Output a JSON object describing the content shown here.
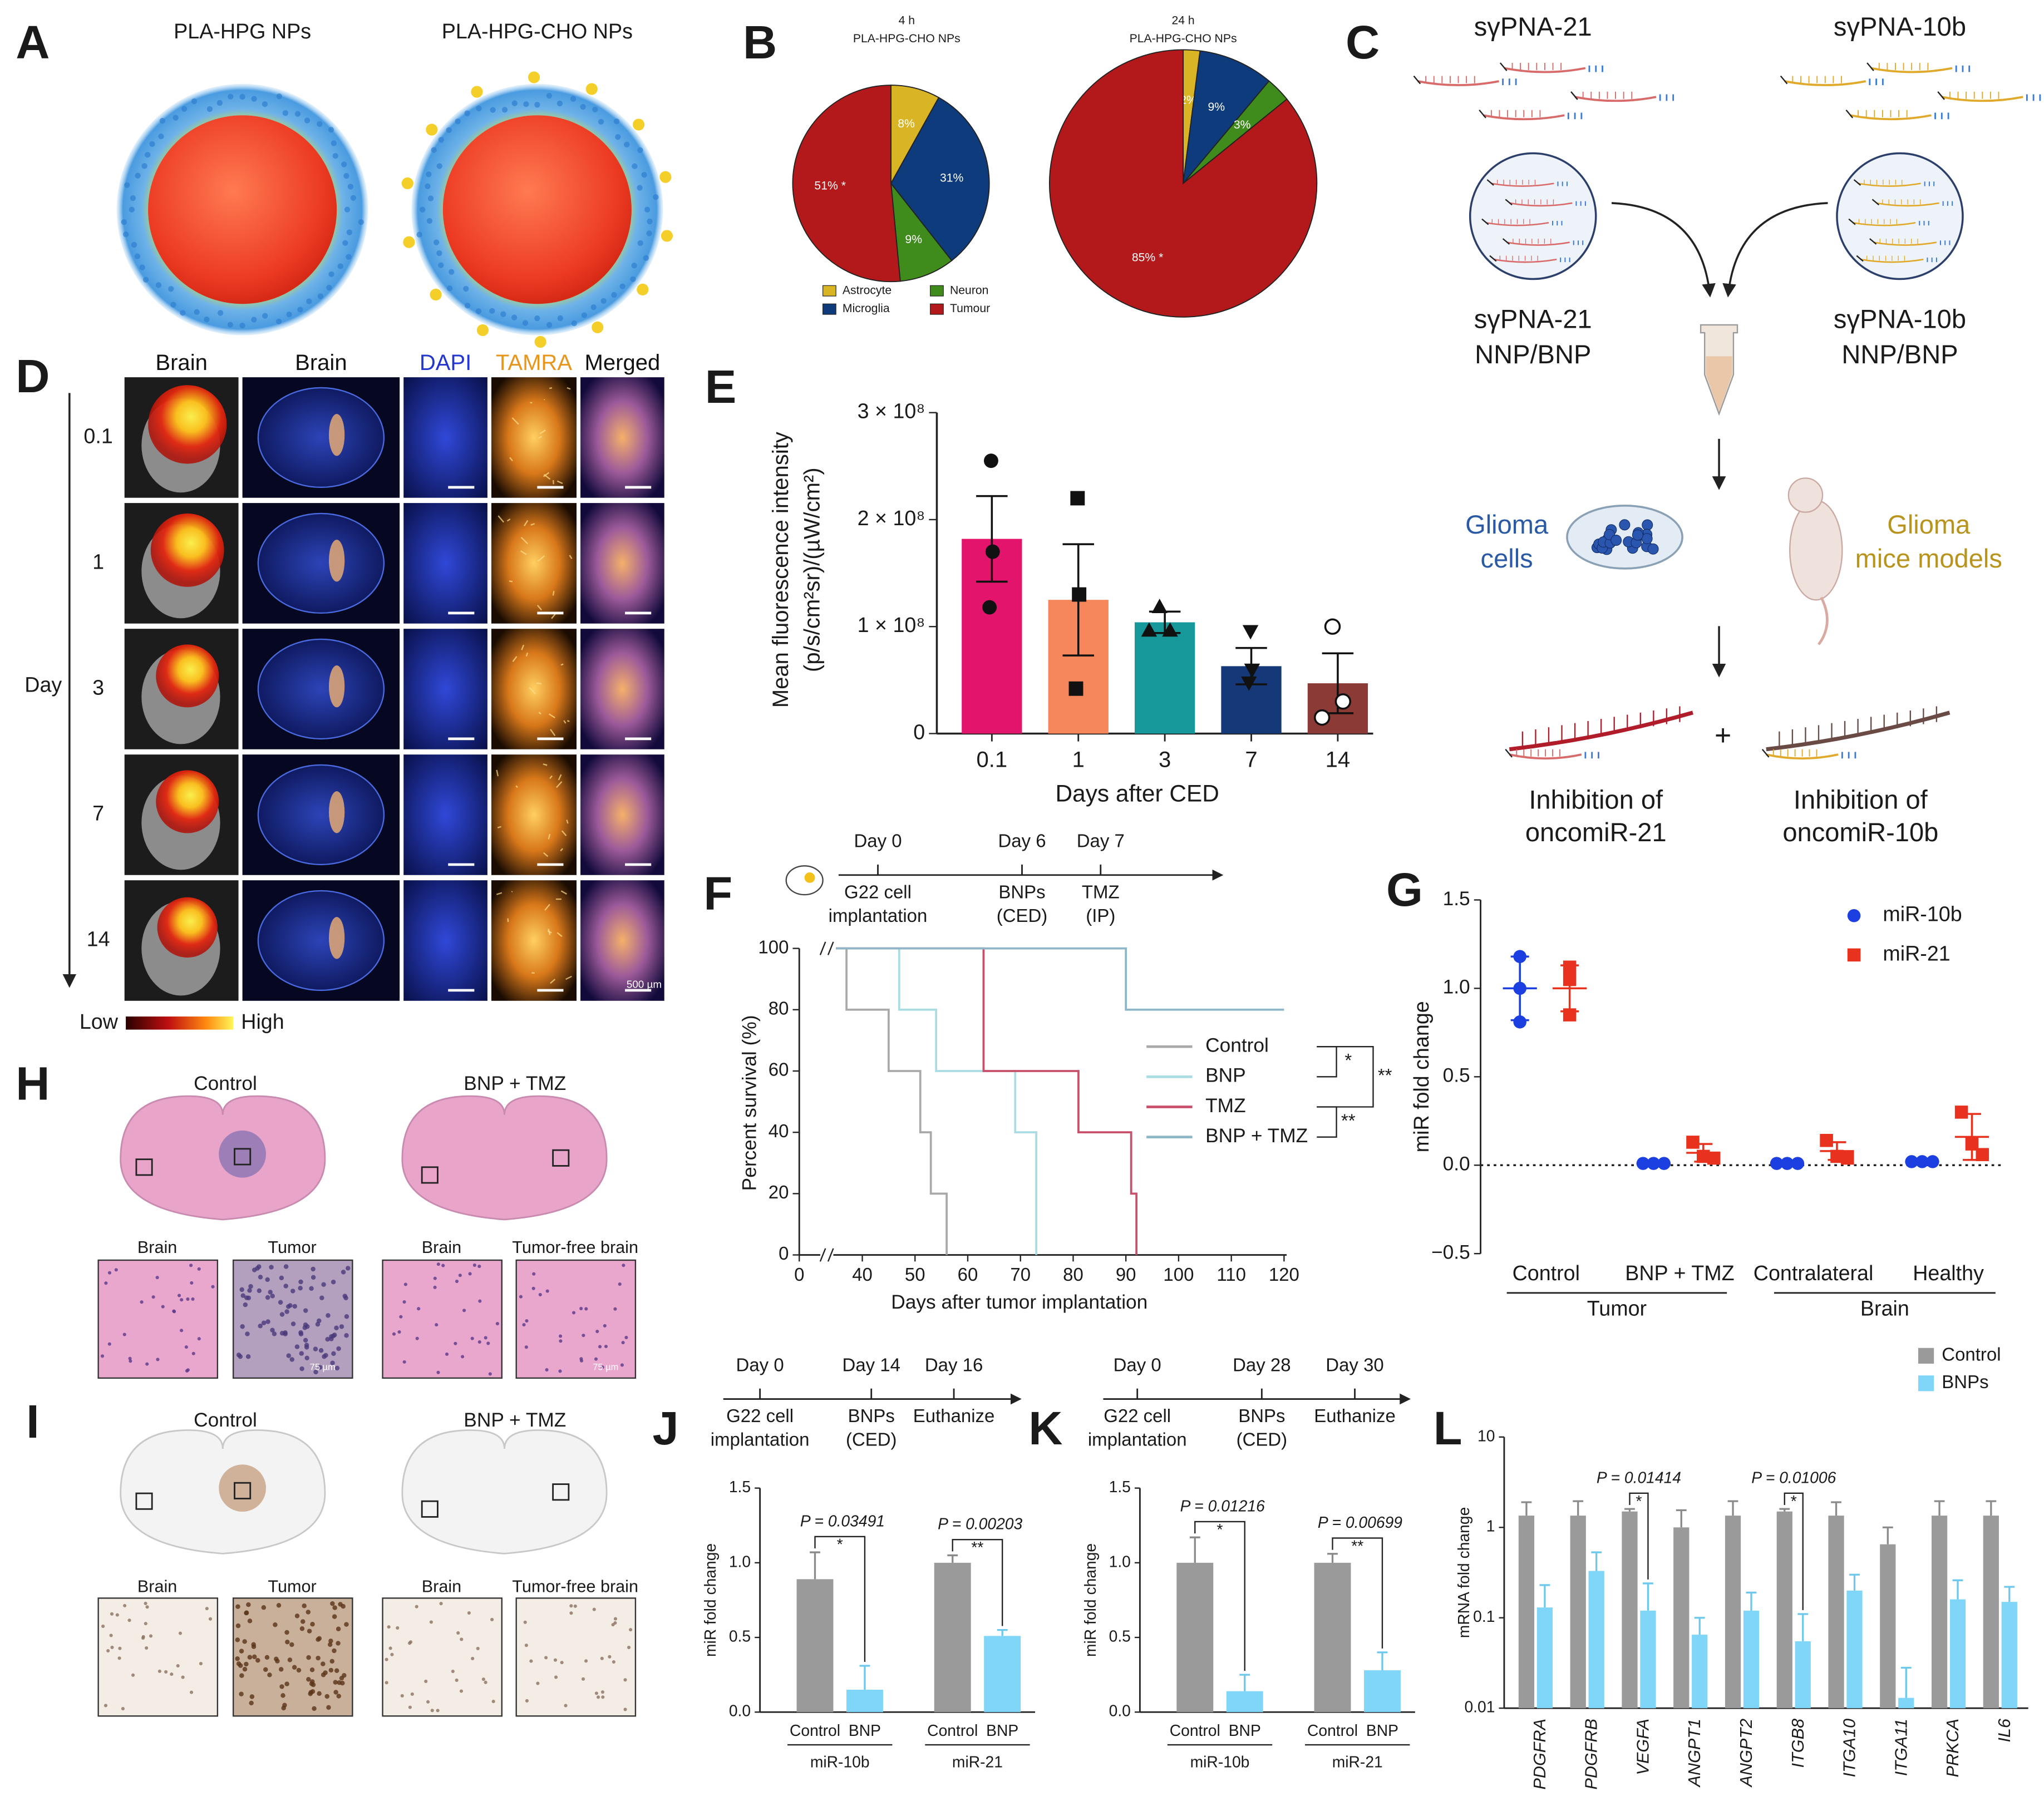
{
  "panel_labels": [
    "A",
    "B",
    "C",
    "D",
    "E",
    "F",
    "G",
    "H",
    "I",
    "J",
    "K",
    "L"
  ],
  "panel_a": {
    "titles": [
      "PLA-HPG NPs",
      "PLA-HPG-CHO NPs"
    ]
  },
  "panel_c": {
    "probes": [
      "sγPNA-21",
      "sγPNA-10b"
    ],
    "formulations": [
      [
        "sγPNA-21",
        "NNP/BNP"
      ],
      [
        "sγPNA-10b",
        "NNP/BNP"
      ]
    ],
    "in_vitro": [
      "Glioma",
      "cells"
    ],
    "in_vivo": [
      "Glioma",
      "mice models"
    ],
    "join": "+",
    "outcomes": [
      [
        "Inhibition of",
        "oncomiR-21"
      ],
      [
        "Inhibition of",
        "oncomiR-10b"
      ]
    ]
  },
  "panel_d": {
    "columns": [
      "Brain",
      "Brain",
      "DAPI",
      "TAMRA",
      "Merged"
    ],
    "column_colors": [
      "#111111",
      "#111111",
      "#2236d0",
      "#e8951c",
      "#111111"
    ],
    "axis_label": "Day",
    "rows": [
      "0.1",
      "1",
      "3",
      "7",
      "14"
    ],
    "scale_low": "Low",
    "scale_high": "High",
    "scale_bar": "500 µm"
  },
  "panel_h": {
    "groups": [
      "Control",
      "BNP + TMZ"
    ],
    "insets": [
      "Brain",
      "Tumor",
      "Brain",
      "Tumor-free brain"
    ],
    "scale_bar": "75 µm"
  },
  "panel_i": {
    "groups": [
      "Control",
      "BNP + TMZ"
    ],
    "insets": [
      "Brain",
      "Tumor",
      "Brain",
      "Tumor-free brain"
    ]
  },
  "chart_data": [
    {
      "type": "pie",
      "categories": [
        "Astrocyte",
        "Microglia",
        "Neuron",
        "Tumour"
      ],
      "colors": [
        "#d9b526",
        "#0d3b7c",
        "#3f8c1c",
        "#b3191b"
      ],
      "series": [
        {
          "name": "4 h",
          "subtitle": "PLA-HPG-CHO NPs",
          "values": [
            8,
            31,
            9,
            51
          ],
          "value_labels": [
            "8%",
            "31%",
            "9%",
            "51% *"
          ]
        },
        {
          "name": "24 h",
          "subtitle": "PLA-HPG-CHO NPs",
          "values": [
            2,
            9,
            3,
            85
          ],
          "value_labels": [
            "2%",
            "9%",
            "3%",
            "85% *"
          ]
        }
      ]
    },
    {
      "type": "bar",
      "categories": [
        "0.1",
        "1",
        "3",
        "7",
        "14"
      ],
      "values": [
        182000000,
        125000000,
        104000000,
        63000000,
        47000000
      ],
      "errors": [
        40000000,
        52000000,
        10000000,
        17000000,
        28000000
      ],
      "points": [
        [
          255000000,
          170000000,
          118000000
        ],
        [
          220000000,
          130000000,
          42000000
        ],
        [
          118000000,
          96000000,
          96000000
        ],
        [
          96000000,
          60000000,
          48000000
        ],
        [
          100000000,
          30000000,
          15000000
        ]
      ],
      "markers": [
        "circle",
        "square",
        "triangle",
        "triangle-down",
        "circle-open"
      ],
      "colors": [
        "#e2146b",
        "#f5875a",
        "#17999b",
        "#143878",
        "#8c3a36"
      ],
      "ylim": [
        0,
        300000000
      ],
      "yticks": [
        0,
        {
          "value": 100000000,
          "label": "1 × 10⁸"
        },
        {
          "value": 200000000,
          "label": "2 × 10⁸"
        },
        {
          "value": 300000000,
          "label": "3 × 10⁸"
        }
      ],
      "xlabel": "Days after CED",
      "ylabel": [
        "Mean fluorescence intensity",
        "(p/s/cm²sr)/(µW/cm²)"
      ]
    },
    {
      "type": "line",
      "step": true,
      "xlim": [
        0,
        120
      ],
      "axis_break": [
        5,
        35
      ],
      "xticks": [
        0,
        40,
        50,
        60,
        70,
        80,
        90,
        100,
        110,
        120
      ],
      "ylim": [
        0,
        100
      ],
      "yticks": [
        0,
        20,
        40,
        60,
        80,
        100
      ],
      "xlabel": "Days after tumor implantation",
      "ylabel": "Percent survival (%)",
      "series": [
        {
          "name": "Control",
          "color": "#a9a9a9",
          "x": [
            35,
            37,
            45,
            51,
            53,
            56
          ],
          "values": [
            100,
            80,
            60,
            40,
            20,
            0
          ]
        },
        {
          "name": "BNP",
          "color": "#a9dde3",
          "x": [
            35,
            47,
            54,
            69,
            73
          ],
          "values": [
            100,
            80,
            60,
            40,
            0
          ]
        },
        {
          "name": "TMZ",
          "color": "#c9506b",
          "x": [
            35,
            63,
            81,
            91,
            92
          ],
          "values": [
            100,
            60,
            40,
            20,
            0
          ]
        },
        {
          "name": "BNP + TMZ",
          "color": "#8db6c8",
          "x": [
            35,
            90,
            120
          ],
          "values": [
            100,
            80,
            80
          ]
        }
      ],
      "significance": [
        {
          "series": [
            0,
            1
          ],
          "label": "*"
        },
        {
          "series": [
            0,
            2
          ],
          "label": "**"
        },
        {
          "series": [
            2,
            3
          ],
          "label": "**"
        }
      ],
      "timeline": {
        "days": [
          "Day 0",
          "Day 6",
          "Day 7"
        ],
        "events": [
          [
            "G22 cell",
            "implantation"
          ],
          [
            "BNPs",
            "(CED)"
          ],
          [
            "TMZ",
            "(IP)"
          ]
        ]
      }
    },
    {
      "type": "scatter",
      "categories": [
        "Control",
        "BNP + TMZ",
        "Contralateral",
        "Healthy"
      ],
      "groups": [
        {
          "name": "Tumor",
          "categories": [
            0,
            1
          ]
        },
        {
          "name": "Brain",
          "categories": [
            2,
            3
          ]
        }
      ],
      "ylim": [
        -0.5,
        1.5
      ],
      "yticks": [
        {
          "value": -0.5,
          "label": "−0.5"
        },
        {
          "value": 0,
          "label": "0.0"
        },
        0.5,
        {
          "value": 1,
          "label": "1.0"
        },
        1.5
      ],
      "ylabel": "miR fold change",
      "reference_line": 0,
      "legend": "upper right",
      "series": [
        {
          "name": "miR-10b",
          "color": "#1b3fe0",
          "marker": "circle",
          "values": [
            [
              1.18,
              1.0,
              0.81
            ],
            [
              0.01,
              0.01,
              0.01
            ],
            [
              0.01,
              0.01,
              0.01
            ],
            [
              0.02,
              0.02,
              0.02
            ]
          ],
          "means": [
            1.0,
            0.01,
            0.01,
            0.02
          ],
          "sd": [
            0.18,
            0,
            0,
            0
          ]
        },
        {
          "name": "miR-21",
          "color": "#e8321e",
          "marker": "square",
          "values": [
            [
              1.12,
              1.05,
              0.85
            ],
            [
              0.13,
              0.05,
              0.04
            ],
            [
              0.14,
              0.05,
              0.04
            ],
            [
              0.3,
              0.12,
              0.06
            ]
          ],
          "means": [
            1.0,
            0.07,
            0.08,
            0.16
          ],
          "sd": [
            0.13,
            0.05,
            0.05,
            0.13
          ]
        }
      ]
    },
    {
      "type": "bar",
      "categories": [
        "miR-10b",
        "miR-21"
      ],
      "series": [
        {
          "name": "Control",
          "color": "#9a9a9a",
          "values": [
            0.89,
            1.0
          ],
          "errors": [
            0.18,
            0.05
          ]
        },
        {
          "name": "BNP",
          "color": "#80d6f8",
          "values": [
            0.15,
            0.51
          ],
          "errors": [
            0.16,
            0.04
          ]
        }
      ],
      "ylim": [
        0,
        1.5
      ],
      "yticks": [
        {
          "value": 0,
          "label": "0.0"
        },
        0.5,
        {
          "value": 1,
          "label": "1.0"
        },
        1.5
      ],
      "ylabel": "miR fold change",
      "comparisons": [
        {
          "category": 0,
          "p": "P = 0.03491",
          "label": "*"
        },
        {
          "category": 1,
          "p": "P = 0.00203",
          "label": "**"
        }
      ],
      "timeline": {
        "days": [
          "Day 0",
          "Day 14",
          "Day 16"
        ],
        "events": [
          [
            "G22 cell",
            "implantation"
          ],
          [
            "BNPs",
            "(CED)"
          ],
          [
            "Euthanize"
          ]
        ]
      }
    },
    {
      "type": "bar",
      "categories": [
        "miR-10b",
        "miR-21"
      ],
      "series": [
        {
          "name": "Control",
          "color": "#9a9a9a",
          "values": [
            1.0,
            1.0
          ],
          "errors": [
            0.17,
            0.06
          ]
        },
        {
          "name": "BNP",
          "color": "#80d6f8",
          "values": [
            0.14,
            0.28
          ],
          "errors": [
            0.11,
            0.12
          ]
        }
      ],
      "ylim": [
        0,
        1.5
      ],
      "yticks": [
        {
          "value": 0,
          "label": "0.0"
        },
        0.5,
        {
          "value": 1,
          "label": "1.0"
        },
        1.5
      ],
      "ylabel": "miR fold change",
      "comparisons": [
        {
          "category": 0,
          "p": "P = 0.01216",
          "label": "*"
        },
        {
          "category": 1,
          "p": "P = 0.00699",
          "label": "**"
        }
      ],
      "timeline": {
        "days": [
          "Day 0",
          "Day 28",
          "Day 30"
        ],
        "events": [
          [
            "G22 cell",
            "implantation"
          ],
          [
            "BNPs",
            "(CED)"
          ],
          [
            "Euthanize"
          ]
        ]
      }
    },
    {
      "type": "bar",
      "log": true,
      "categories": [
        "PDGFRA",
        "PDGFRB",
        "VEGFA",
        "ANGPT1",
        "ANGPT2",
        "ITGB8",
        "ITGA10",
        "ITGA11",
        "PRKCA",
        "IL6"
      ],
      "series": [
        {
          "name": "Control",
          "color": "#9a9a9a",
          "values": [
            1.35,
            1.35,
            1.5,
            1.0,
            1.35,
            1.5,
            1.35,
            0.65,
            1.35,
            1.35
          ],
          "errors": [
            0.55,
            0.6,
            0.1,
            0.55,
            0.6,
            0.1,
            0.55,
            0.35,
            0.6,
            0.6
          ]
        },
        {
          "name": "BNPs",
          "color": "#80d6f8",
          "values": [
            0.13,
            0.33,
            0.12,
            0.065,
            0.12,
            0.055,
            0.2,
            0.013,
            0.16,
            0.15
          ],
          "errors": [
            0.1,
            0.2,
            0.12,
            0.035,
            0.07,
            0.055,
            0.1,
            0.015,
            0.1,
            0.07
          ]
        }
      ],
      "ylim": [
        0.01,
        10
      ],
      "yticks": [
        0.01,
        0.1,
        1,
        10
      ],
      "ylabel": "mRNA fold change",
      "legend": "upper right",
      "comparisons": [
        {
          "category": 2,
          "p": "P = 0.01414",
          "label": "*"
        },
        {
          "category": 5,
          "p": "P = 0.01006",
          "label": "*"
        }
      ]
    }
  ]
}
